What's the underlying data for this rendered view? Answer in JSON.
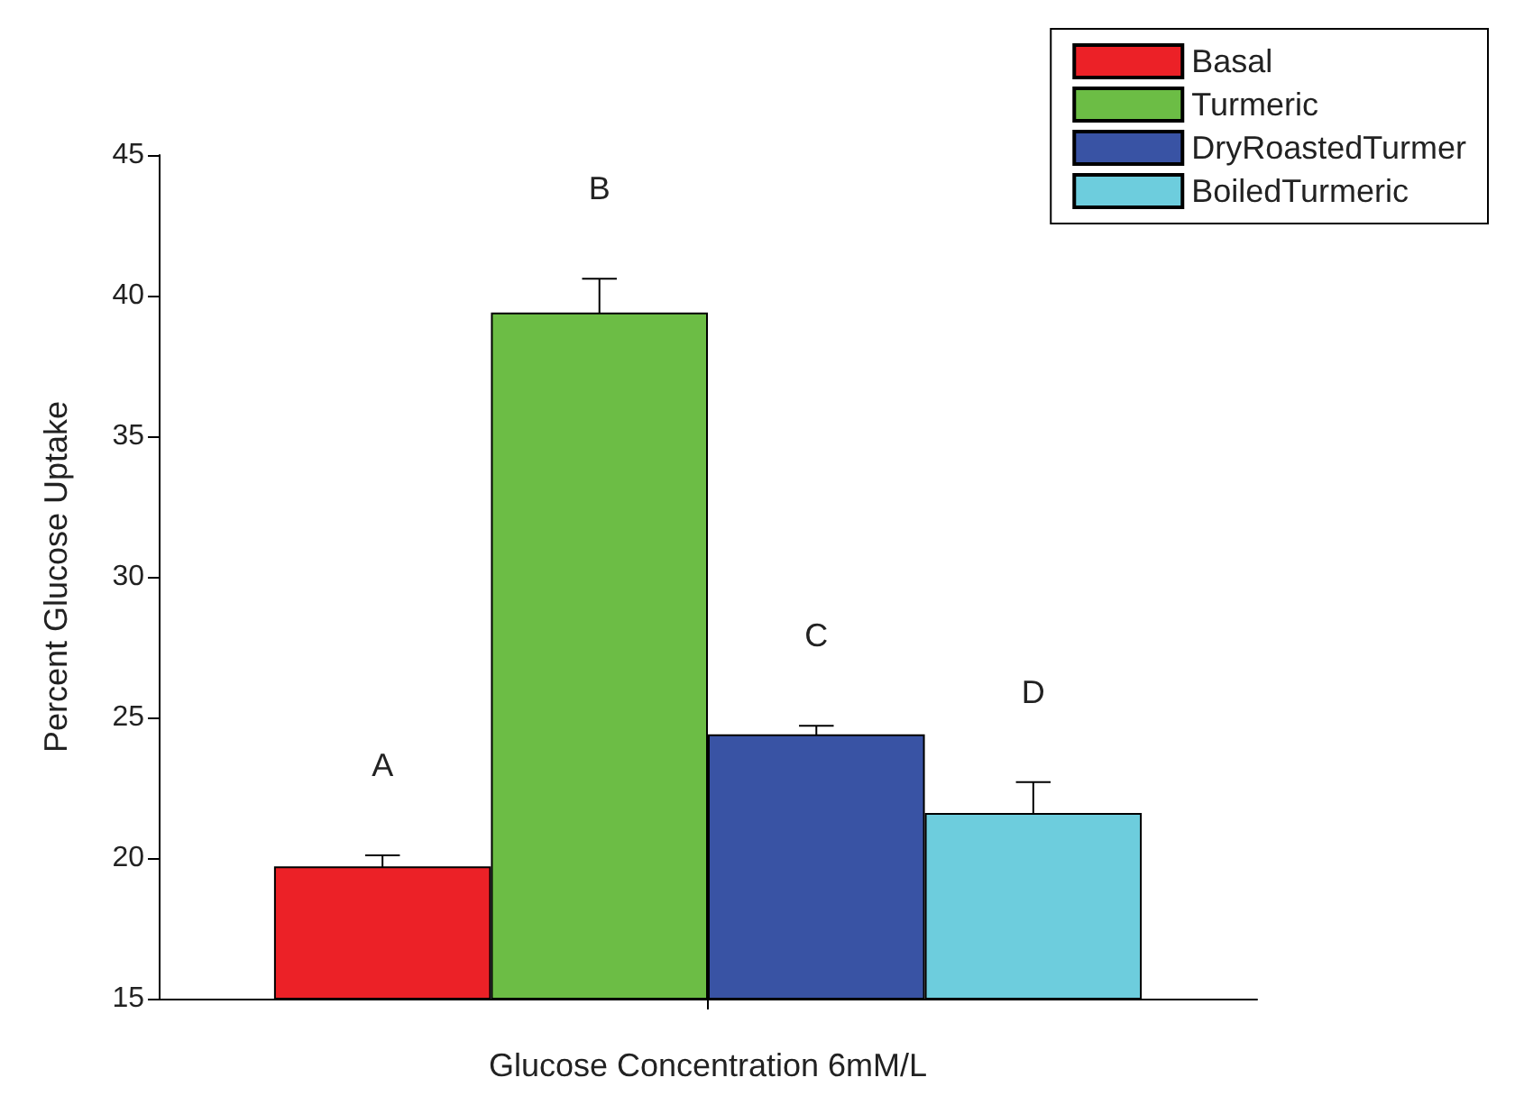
{
  "chart_data": {
    "type": "bar",
    "xlabel": "Glucose Concentration 6mM/L",
    "ylabel": "Percent Glucose Uptake",
    "categories": [
      null
    ],
    "series": [
      {
        "name": "Basal",
        "color": "#ec2127",
        "values": [
          19.7
        ],
        "errors": [
          0.4
        ]
      },
      {
        "name": "Turmeric",
        "color": "#6cbd45",
        "values": [
          39.4
        ],
        "errors": [
          1.2
        ]
      },
      {
        "name": "DryRoastedTurmer",
        "color": "#3953a4",
        "values": [
          24.4
        ],
        "errors": [
          0.3
        ]
      },
      {
        "name": "BoiledTurmeric",
        "color": "#6dcddd",
        "values": [
          21.6
        ],
        "errors": [
          1.1
        ]
      }
    ],
    "ylim": [
      15,
      45
    ],
    "yticks": [
      15,
      20,
      25,
      30,
      35,
      40,
      45
    ],
    "grid": false,
    "legend": "top right",
    "annotations": [
      "A",
      "B",
      "C",
      "D"
    ]
  }
}
